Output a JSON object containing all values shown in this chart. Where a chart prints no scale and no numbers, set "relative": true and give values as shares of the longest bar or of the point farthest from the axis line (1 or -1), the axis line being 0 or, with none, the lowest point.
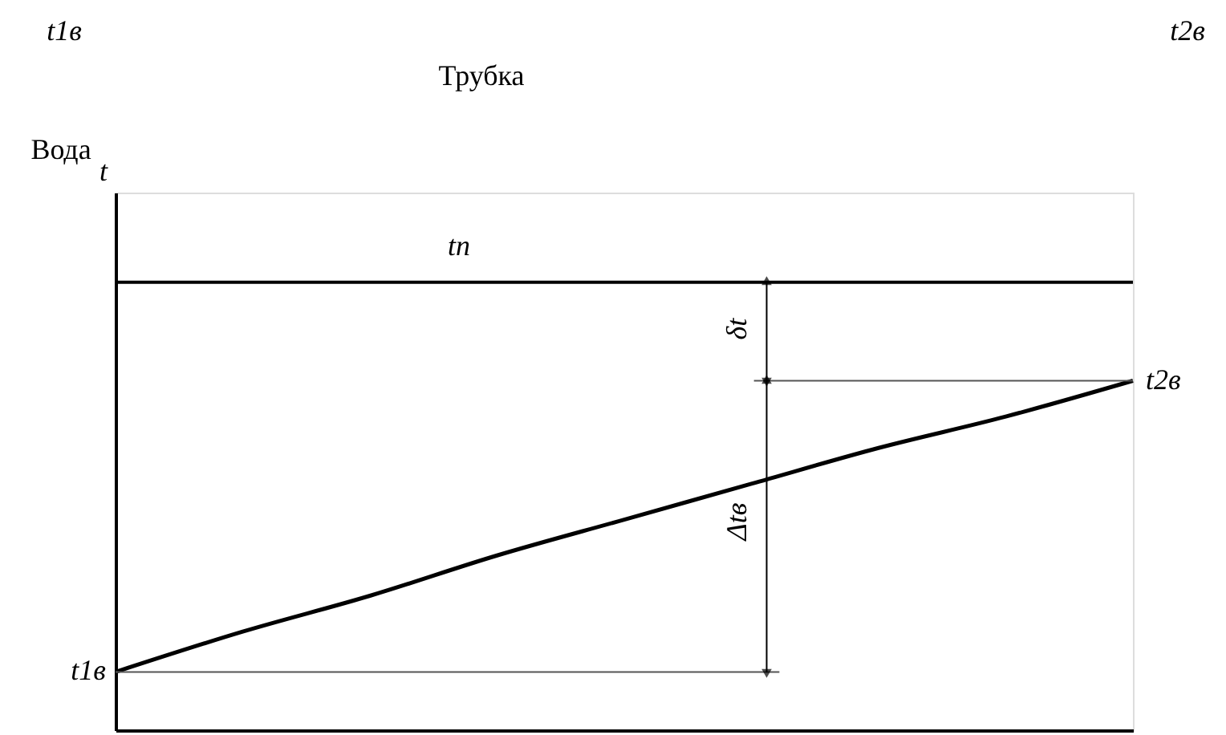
{
  "chart_data": {
    "type": "line",
    "relative": true,
    "ylabel": "t",
    "categories": [
      null,
      null,
      null,
      null,
      null,
      null,
      null,
      null,
      null
    ],
    "series": [
      {
        "name": "tп",
        "color": "#000000",
        "values": [
          1,
          1,
          1,
          1,
          1,
          1,
          1,
          1,
          1
        ]
      },
      {
        "color": "#000000",
        "values": [
          0.13,
          0.22,
          0.3,
          0.39,
          0.47,
          0.55,
          0.63,
          0.7,
          0.78
        ]
      }
    ],
    "ref_lines": [
      {
        "axis": "y",
        "value": 0.13,
        "label": "t1в",
        "color": "#555555"
      },
      {
        "axis": "y",
        "value": 0.78,
        "label": "t2в",
        "color": "#555555"
      }
    ],
    "annotations": [
      "t1в",
      "Трубка",
      "Вода",
      "t2в",
      "δt",
      "Δtв"
    ]
  }
}
